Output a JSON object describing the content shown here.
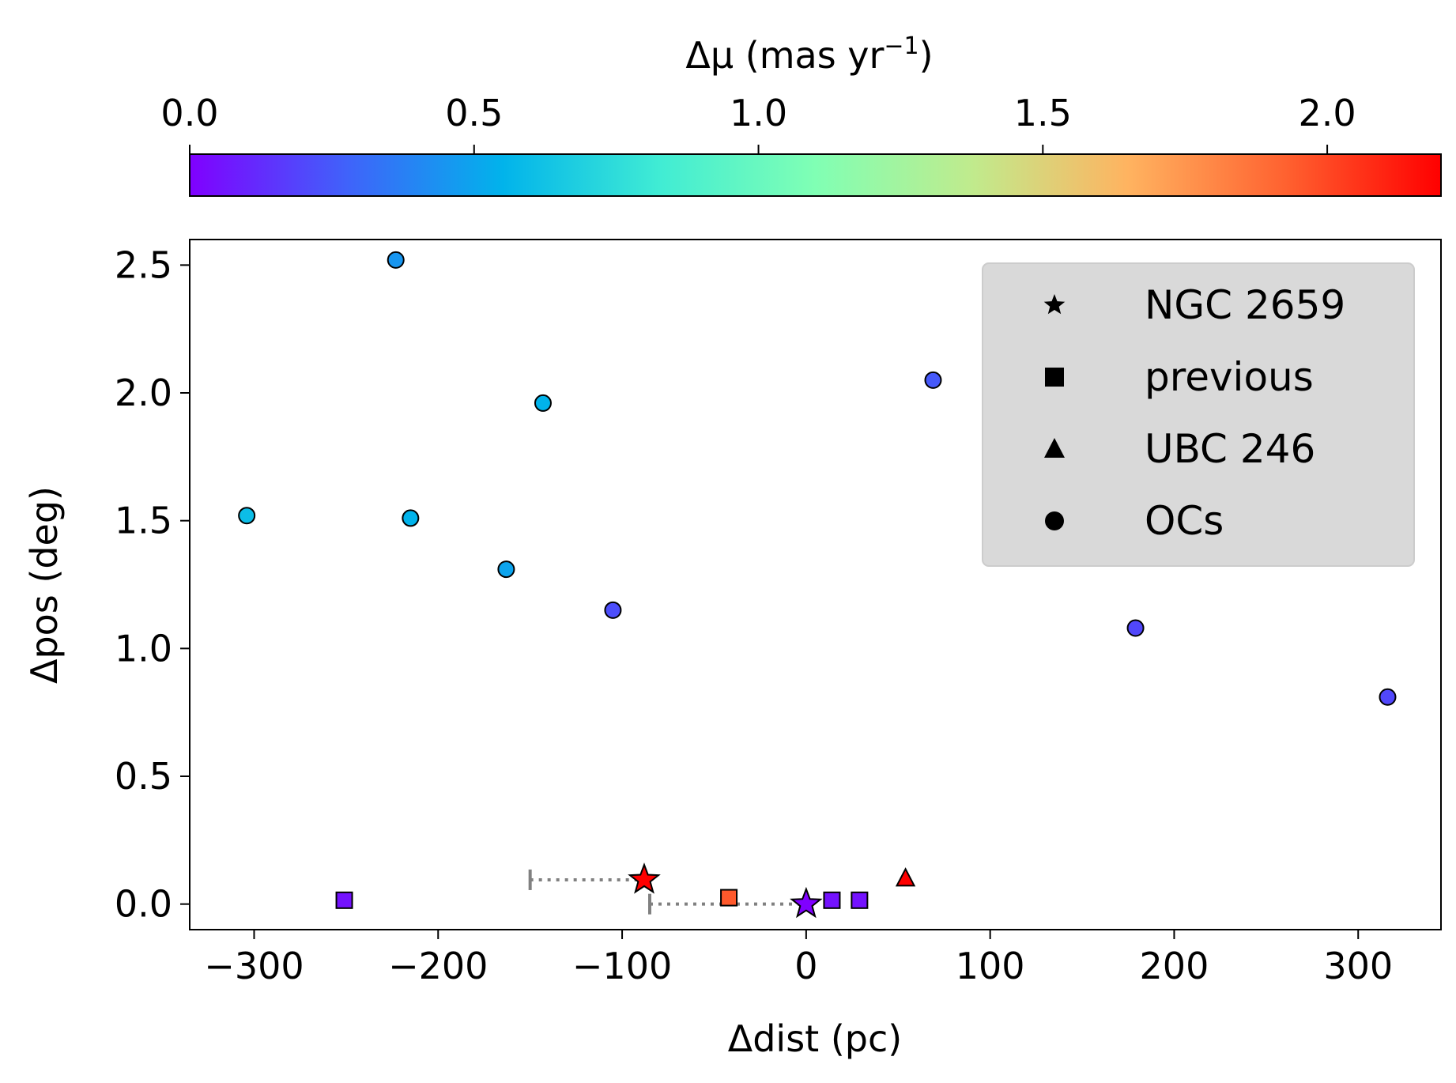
{
  "chart_data": {
    "type": "scatter",
    "colorbar": {
      "label": "Δμ (mas yr",
      "label_sup": "−1",
      "label_end": ")",
      "range": [
        0.0,
        2.2
      ],
      "ticks": [
        0.0,
        0.5,
        1.0,
        1.5,
        2.0
      ],
      "tick_labels": [
        "0.0",
        "0.5",
        "1.0",
        "1.5",
        "2.0"
      ],
      "colormap": "rainbow",
      "stops": [
        "#8000ff",
        "#4062fa",
        "#01b3eb",
        "#40ecd4",
        "#80ffb4",
        "#c0eb8d",
        "#ffb360",
        "#ff6230",
        "#ff0000"
      ]
    },
    "xlabel": "Δdist (pc)",
    "ylabel": "Δpos (deg)",
    "xlim": [
      -335,
      345
    ],
    "ylim": [
      -0.1,
      2.6
    ],
    "xticks": [
      -300,
      -200,
      -100,
      0,
      100,
      200,
      300
    ],
    "xtick_labels": [
      "−300",
      "−200",
      "−100",
      "0",
      "100",
      "200",
      "300"
    ],
    "yticks": [
      0.0,
      0.5,
      1.0,
      1.5,
      2.0,
      2.5
    ],
    "ytick_labels": [
      "0.0",
      "0.5",
      "1.0",
      "1.5",
      "2.0",
      "2.5"
    ],
    "legend": {
      "location": "upper right",
      "entries": [
        {
          "marker": "star",
          "label": "NGC 2659"
        },
        {
          "marker": "square",
          "label": "previous"
        },
        {
          "marker": "triangle",
          "label": "UBC 246"
        },
        {
          "marker": "circle",
          "label": "OCs"
        }
      ]
    },
    "series": [
      {
        "name": "NGC 2659",
        "marker": "star",
        "points": [
          {
            "x": 0,
            "y": 0.0,
            "dmu": 0.0
          },
          {
            "x": -88,
            "y": 0.095,
            "dmu": 2.2
          }
        ]
      },
      {
        "name": "previous",
        "marker": "square",
        "points": [
          {
            "x": -251,
            "y": 0.015,
            "dmu": 0.05
          },
          {
            "x": -42,
            "y": 0.025,
            "dmu": 1.95
          },
          {
            "x": 14,
            "y": 0.015,
            "dmu": 0.05
          },
          {
            "x": 29,
            "y": 0.015,
            "dmu": 0.05
          }
        ]
      },
      {
        "name": "UBC 246",
        "marker": "triangle",
        "points": [
          {
            "x": 54,
            "y": 0.1,
            "dmu": 2.2
          }
        ]
      },
      {
        "name": "OCs",
        "marker": "circle",
        "points": [
          {
            "x": -223,
            "y": 2.52,
            "dmu": 0.45
          },
          {
            "x": -143,
            "y": 1.96,
            "dmu": 0.55
          },
          {
            "x": 69,
            "y": 2.05,
            "dmu": 0.25
          },
          {
            "x": -304,
            "y": 1.52,
            "dmu": 0.6
          },
          {
            "x": -215,
            "y": 1.51,
            "dmu": 0.55
          },
          {
            "x": -163,
            "y": 1.31,
            "dmu": 0.5
          },
          {
            "x": -105,
            "y": 1.15,
            "dmu": 0.22
          },
          {
            "x": 179,
            "y": 1.08,
            "dmu": 0.2
          },
          {
            "x": 316,
            "y": 0.81,
            "dmu": 0.2
          }
        ]
      }
    ],
    "connectors": [
      {
        "from": [
          -150,
          0.095
        ],
        "to": [
          -88,
          0.095
        ]
      },
      {
        "from": [
          -85,
          0.0
        ],
        "to": [
          0,
          0.0
        ]
      }
    ]
  }
}
